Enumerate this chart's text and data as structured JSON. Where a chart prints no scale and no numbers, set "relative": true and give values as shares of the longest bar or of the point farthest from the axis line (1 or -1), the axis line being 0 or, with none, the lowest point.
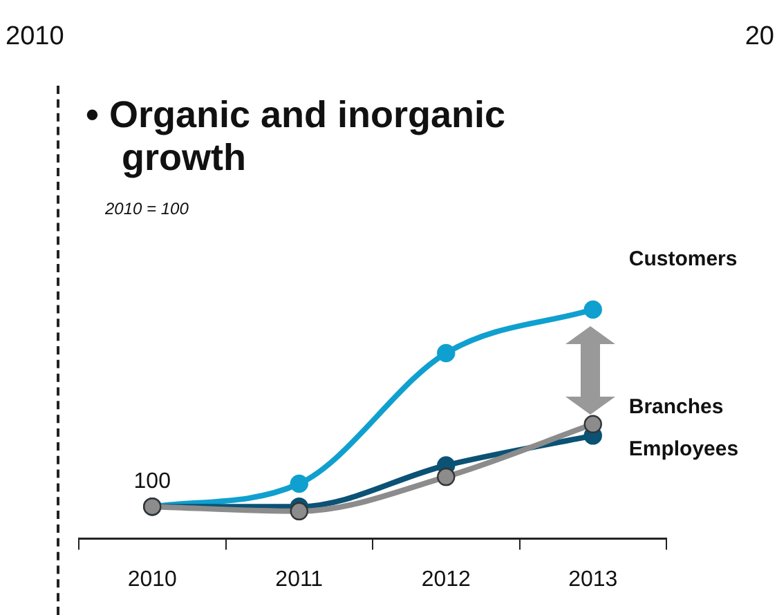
{
  "chart_data": {
    "type": "line",
    "title": "• Organic and inorganic growth",
    "subtitle": "2010 = 100",
    "categories": [
      "2010",
      "2011",
      "2012",
      "2013"
    ],
    "series": [
      {
        "name": "Customers",
        "color": "#0fa0cf",
        "values": [
          0.14,
          0.24,
          0.81,
          1
        ]
      },
      {
        "name": "Employees",
        "color": "#0b5275",
        "values": [
          0.14,
          0.14,
          0.32,
          0.45
        ]
      },
      {
        "name": "Branches",
        "color": "#8c8c8c",
        "values": [
          0.14,
          0.12,
          0.27,
          0.5
        ]
      }
    ],
    "relative": true,
    "marker": "circle",
    "line_style": "solid",
    "grid": false,
    "legend": false,
    "annotations": [
      "2010",
      "20",
      {
        "text": "100",
        "x": "2010",
        "y": 0.14
      }
    ]
  }
}
